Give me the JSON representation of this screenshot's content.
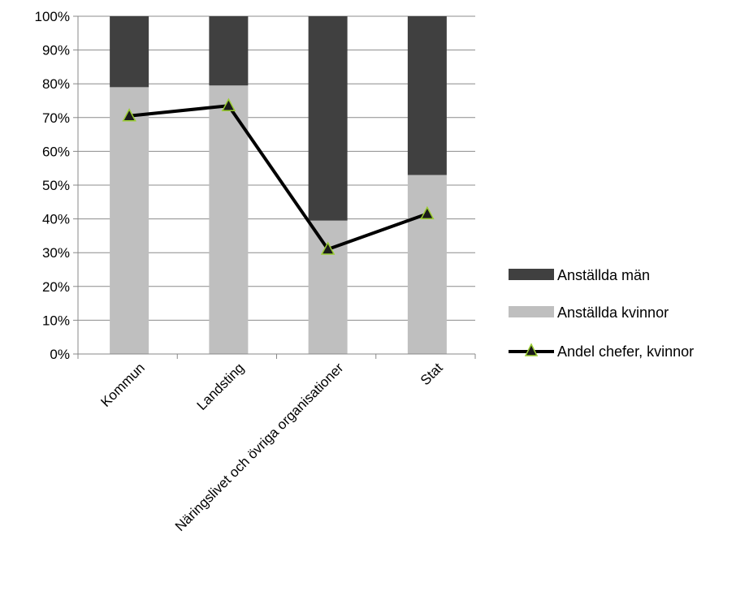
{
  "chart_data": {
    "type": "bar",
    "stacked": true,
    "categories": [
      "Kommun",
      "Landsting",
      "Näringslivet och övriga organisationer",
      "Stat"
    ],
    "series": [
      {
        "name": "Anställda kvinnor",
        "kind": "bar",
        "color": "#bfbfbf",
        "values": [
          79,
          79.5,
          39.5,
          53
        ]
      },
      {
        "name": "Anställda män",
        "kind": "bar",
        "color": "#404040",
        "values": [
          21,
          20.5,
          60.5,
          47
        ]
      },
      {
        "name": "Andel chefer, kvinnor",
        "kind": "line",
        "color": "#000000",
        "marker": "triangle",
        "marker_color": "#1a1a1a",
        "marker_edge_color": "#9acd32",
        "values": [
          70.5,
          73.5,
          31,
          41.5
        ]
      }
    ],
    "yticks": [
      "0%",
      "10%",
      "20%",
      "30%",
      "40%",
      "50%",
      "60%",
      "70%",
      "80%",
      "90%",
      "100%"
    ],
    "ylim": [
      0,
      100
    ],
    "grid": true,
    "legend": {
      "placement": "right",
      "entries": [
        "Anställda män",
        "Anställda kvinnor",
        "Andel chefer, kvinnor"
      ]
    }
  }
}
